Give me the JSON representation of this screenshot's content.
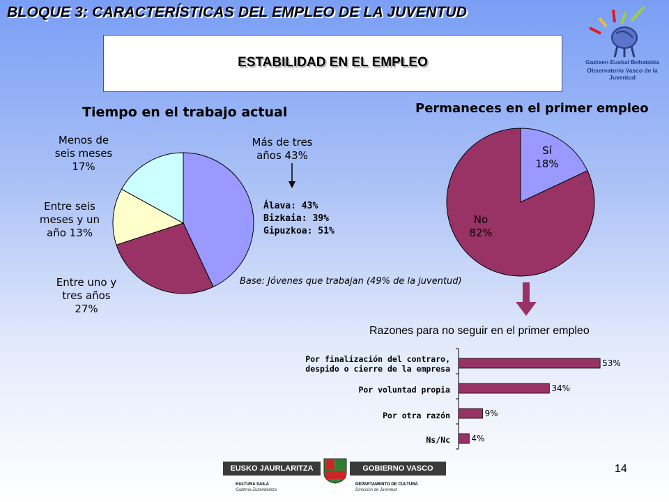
{
  "header": {
    "title": "BLOQUE 3: CARACTERÍSTICAS DEL EMPLEO DE LA JUVENTUD",
    "subtitle": "ESTABILIDAD EN EL EMPLEO"
  },
  "logo_observatorio": {
    "line1": "Gazteen Euskal Behatokia",
    "line2": "Observatorio Vasco de la Juventud",
    "icon": "satellite-dish-icon"
  },
  "page_number": "14",
  "footer": {
    "left_label": "EUSKO JAURLARITZA",
    "right_label": "GOBIERNO VASCO",
    "left_sub1": "KULTURA SAILA",
    "left_sub2": "Gazteria Zuzendaritza",
    "right_sub1": "DEPARTAMENTO DE CULTURA",
    "right_sub2": "Dirección de Juventud",
    "icon": "coat-of-arms-icon"
  },
  "colors": {
    "periwinkle": "#9999ff",
    "plum": "#993366",
    "cream": "#ffffcc",
    "light_cyan": "#ccffff",
    "arrow": "#993366"
  },
  "chart_data": [
    {
      "type": "pie",
      "title": "Tiempo en el trabajo actual",
      "slices": [
        {
          "label_lines": [
            "Más de tres",
            "años 43%"
          ],
          "category": "Más de tres años",
          "value": 43,
          "color": "#9999ff"
        },
        {
          "label_lines": [
            "Entre uno y",
            "tres años",
            "27%"
          ],
          "category": "Entre uno y tres años",
          "value": 27,
          "color": "#993366"
        },
        {
          "label_lines": [
            "Entre seis",
            "meses y un",
            "año 13%"
          ],
          "category": "Entre seis meses y un año",
          "value": 13,
          "color": "#ffffcc"
        },
        {
          "label_lines": [
            "Menos de",
            "seis meses",
            "17%"
          ],
          "category": "Menos de seis meses",
          "value": 17,
          "color": "#ccffff"
        }
      ],
      "annotation": [
        "Álava: 43%",
        "Bizkaia: 39%",
        "Gipuzkoa: 51%"
      ],
      "note": "Base: Jóvenes que trabajan (49% de la juventud)"
    },
    {
      "type": "pie",
      "title": "Permaneces en el primer empleo",
      "slices": [
        {
          "label_lines": [
            "Sí",
            "18%"
          ],
          "category": "Sí",
          "value": 18,
          "color": "#9999ff"
        },
        {
          "label_lines": [
            "No",
            "82%"
          ],
          "category": "No",
          "value": 82,
          "color": "#993366"
        }
      ]
    },
    {
      "type": "bar",
      "orientation": "horizontal",
      "title": "Razones para no seguir en el primer empleo",
      "categories": [
        [
          "Por finalización del contraro,",
          "despido o cierre de la empresa"
        ],
        [
          "Por voluntad propia"
        ],
        [
          "Por otra razón"
        ],
        [
          "Ns/Nc"
        ]
      ],
      "values": [
        53,
        34,
        9,
        4
      ],
      "value_labels": [
        "53%",
        "34%",
        "9%",
        "4%"
      ],
      "color": "#993366",
      "xlim": [
        0,
        60
      ]
    }
  ]
}
